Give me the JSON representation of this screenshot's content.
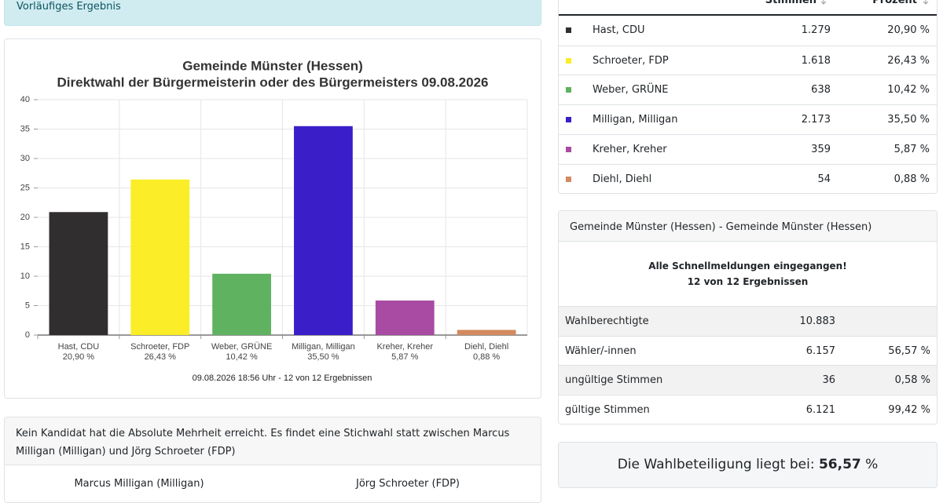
{
  "alert": "Vorläufiges Ergebnis",
  "chart_data": {
    "type": "bar",
    "title": "Gemeinde Münster (Hessen)",
    "subtitle": "Direktwahl der Bürgermeisterin oder des Bürgermeisters 09.08.2026",
    "categories": [
      "Hast, CDU",
      "Schroeter, FDP",
      "Weber, GRÜNE",
      "Milligan, Milligan",
      "Kreher, Kreher",
      "Diehl, Diehl"
    ],
    "values": [
      20.9,
      26.43,
      10.42,
      35.5,
      5.87,
      0.88
    ],
    "value_labels": [
      "20,90 %",
      "26,43 %",
      "10,42 %",
      "35,50 %",
      "5,87 %",
      "0,88 %"
    ],
    "colors": [
      "#302e2f",
      "#fbed27",
      "#5fb260",
      "#3a1ec8",
      "#a94aa3",
      "#d38a60"
    ],
    "ylim": [
      0,
      40
    ],
    "yticks": [
      0,
      5,
      10,
      15,
      20,
      25,
      30,
      35,
      40
    ],
    "grid": true,
    "footer": "09.08.2026 18:56 Uhr - 12 von 12 Ergebnissen"
  },
  "results_table": {
    "headers": [
      "Stimmen",
      "Prozent"
    ],
    "rows": [
      {
        "name": "Hast, CDU",
        "votes": "1.279",
        "percent": "20,90 %"
      },
      {
        "name": "Schroeter, FDP",
        "votes": "1.618",
        "percent": "26,43 %"
      },
      {
        "name": "Weber, GRÜNE",
        "votes": "638",
        "percent": "10,42 %"
      },
      {
        "name": "Milligan, Milligan",
        "votes": "2.173",
        "percent": "35,50 %"
      },
      {
        "name": "Kreher, Kreher",
        "votes": "359",
        "percent": "5,87 %"
      },
      {
        "name": "Diehl, Diehl",
        "votes": "54",
        "percent": "0,88 %"
      }
    ]
  },
  "summary": {
    "header": "Gemeinde Münster (Hessen) - Gemeinde Münster (Hessen)",
    "notice": [
      "Alle Schnellmeldungen eingegangen!",
      "12 von 12 Ergebnissen"
    ],
    "rows": [
      {
        "label": "Wahlberechtigte",
        "value": "10.883"
      },
      {
        "label": "Wähler/-innen",
        "value": "6.157",
        "percent": "56,57 %"
      },
      {
        "label": "ungültige Stimmen",
        "value": "36",
        "percent": "0,58 %"
      },
      {
        "label": "gültige Stimmen",
        "value": "6.121",
        "percent": "99,42 %"
      }
    ]
  },
  "turnout": {
    "prefix": "Die Wahlbeteiligung liegt bei:",
    "value": "56,57",
    "suffix": "%"
  },
  "runoff": {
    "text": "Kein Kandidat hat die Absolute Mehrheit erreicht. Es findet eine Stichwahl statt zwischen Marcus Milligan (Milligan) und Jörg Schroeter (FDP)",
    "candidates": [
      "Marcus Milligan (Milligan)",
      "Jörg Schroeter (FDP)"
    ]
  }
}
